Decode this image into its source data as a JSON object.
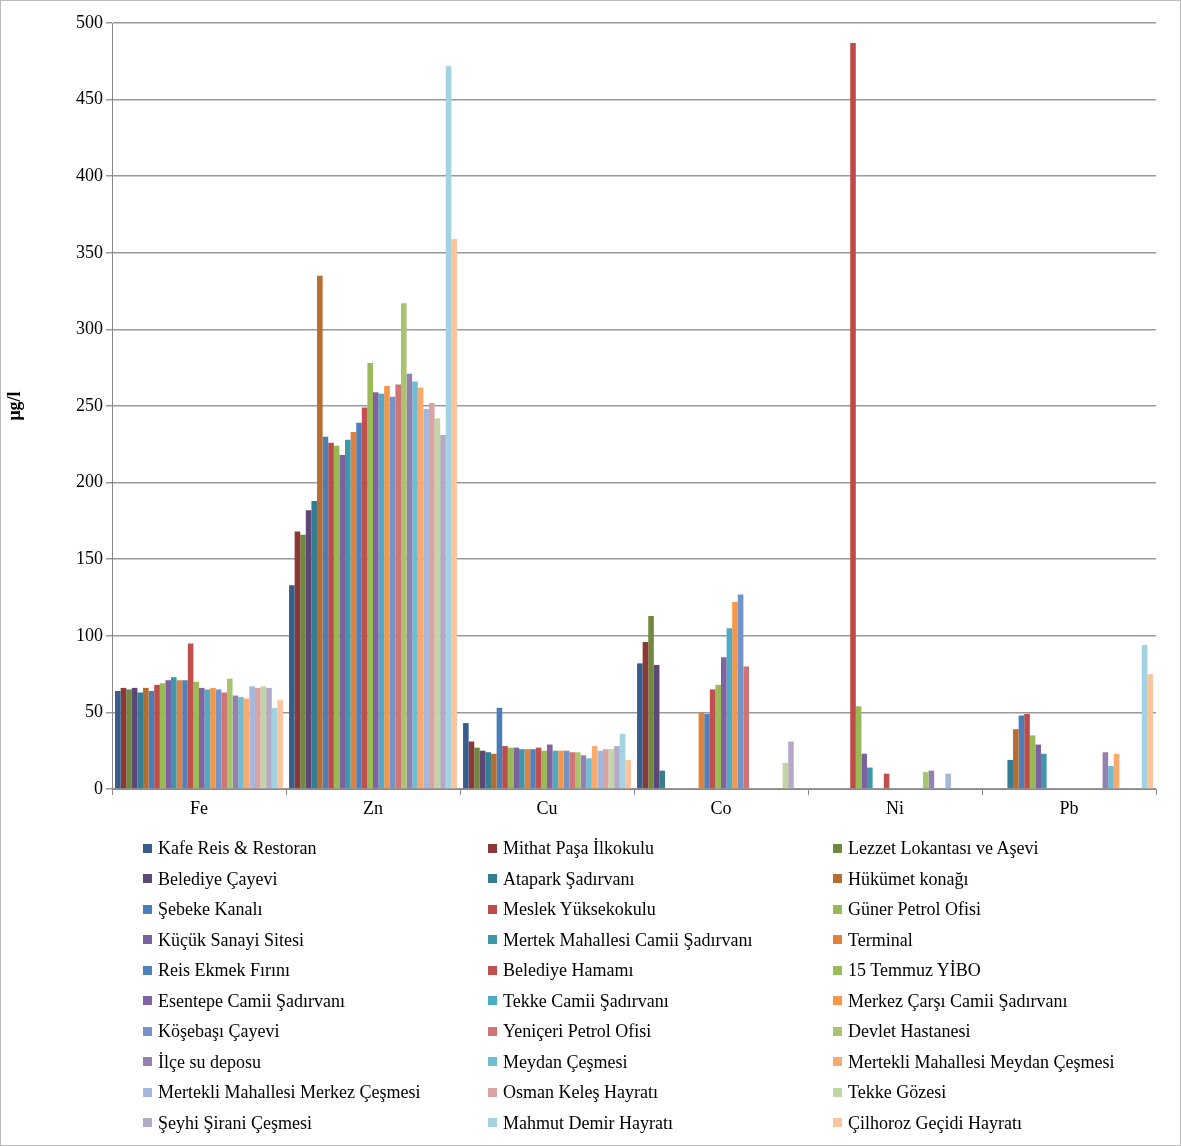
{
  "chart_data": {
    "type": "bar",
    "ylabel": "μg/l",
    "categories": [
      "Fe",
      "Zn",
      "Cu",
      "Co",
      "Ni",
      "Pb"
    ],
    "ylim": [
      0,
      500
    ],
    "yticks": [
      0,
      50,
      100,
      150,
      200,
      250,
      300,
      350,
      400,
      450,
      500
    ],
    "grid": "y",
    "legend": "bottom",
    "series": [
      {
        "name": "Kafe Reis & Restoran",
        "color": "#385d8a",
        "values": [
          64,
          133,
          43,
          82,
          null,
          null
        ]
      },
      {
        "name": "Mithat Paşa İlkokulu",
        "color": "#8c3836",
        "values": [
          66,
          168,
          31,
          96,
          null,
          null
        ]
      },
      {
        "name": "Lezzet Lokantası ve Aşevi",
        "color": "#71893f",
        "values": [
          65,
          166,
          27,
          113,
          null,
          null
        ]
      },
      {
        "name": "Belediye Çayevi",
        "color": "#5c4776",
        "values": [
          66,
          182,
          25,
          81,
          null,
          null
        ]
      },
      {
        "name": "Atapark Şadırvanı",
        "color": "#357d91",
        "values": [
          63,
          188,
          24,
          12,
          null,
          19
        ]
      },
      {
        "name": "Hükümet konağı",
        "color": "#b66d31",
        "values": [
          66,
          335,
          23,
          null,
          null,
          39
        ]
      },
      {
        "name": "Şebeke Kanalı",
        "color": "#4a7ebb",
        "values": [
          64,
          230,
          53,
          null,
          null,
          48
        ]
      },
      {
        "name": "Meslek Yüksekokulu",
        "color": "#be4b48",
        "values": [
          68,
          226,
          28,
          null,
          487,
          49
        ]
      },
      {
        "name": "Güner Petrol Ofisi",
        "color": "#98b954",
        "values": [
          69,
          224,
          27,
          null,
          54,
          35
        ]
      },
      {
        "name": "Küçük Sanayi Sitesi",
        "color": "#7d60a0",
        "values": [
          71,
          218,
          27,
          null,
          23,
          29
        ]
      },
      {
        "name": "Mertek Mahallesi Camii Şadırvanı",
        "color": "#3f97ae",
        "values": [
          73,
          228,
          26,
          null,
          14,
          23
        ]
      },
      {
        "name": "Terminal",
        "color": "#e2823a",
        "values": [
          71,
          233,
          26,
          50,
          null,
          null
        ]
      },
      {
        "name": "Reis Ekmek Fırını",
        "color": "#4f81bd",
        "values": [
          71,
          239,
          26,
          49,
          null,
          null
        ]
      },
      {
        "name": "Belediye Hamamı",
        "color": "#c0504d",
        "values": [
          95,
          249,
          27,
          65,
          10,
          null
        ]
      },
      {
        "name": "15 Temmuz YİBO",
        "color": "#9bbb59",
        "values": [
          70,
          278,
          25,
          68,
          null,
          null
        ]
      },
      {
        "name": "Esentepe Camii Şadırvanı",
        "color": "#8064a2",
        "values": [
          66,
          259,
          29,
          86,
          null,
          null
        ]
      },
      {
        "name": "Tekke Camii Şadırvanı",
        "color": "#4bacc6",
        "values": [
          65,
          258,
          25,
          105,
          null,
          null
        ]
      },
      {
        "name": "Merkez Çarşı Camii Şadırvanı",
        "color": "#f79646",
        "values": [
          66,
          263,
          25,
          122,
          null,
          null
        ]
      },
      {
        "name": "Köşebaşı Çayevi",
        "color": "#7393c9",
        "values": [
          65,
          256,
          25,
          127,
          null,
          null
        ]
      },
      {
        "name": "Yeniçeri Petrol Ofisi",
        "color": "#d07573",
        "values": [
          63,
          264,
          24,
          80,
          null,
          null
        ]
      },
      {
        "name": "Devlet Hastanesi",
        "color": "#a9c46f",
        "values": [
          72,
          317,
          24,
          null,
          11,
          null
        ]
      },
      {
        "name": "İlçe su deposu",
        "color": "#9580b2",
        "values": [
          61,
          271,
          22,
          null,
          12,
          24
        ]
      },
      {
        "name": "Meydan Çeşmesi",
        "color": "#6fbdd2",
        "values": [
          60,
          266,
          20,
          null,
          null,
          15
        ]
      },
      {
        "name": "Mertekli Mahallesi Meydan Çeşmesi",
        "color": "#f9aa6e",
        "values": [
          59,
          262,
          28,
          null,
          null,
          23
        ]
      },
      {
        "name": "Mertekli Mahallesi Merkez Çeşmesi",
        "color": "#a5b8dc",
        "values": [
          67,
          248,
          25,
          null,
          10,
          null
        ]
      },
      {
        "name": "Osman Keleş Hayratı",
        "color": "#d9a3a2",
        "values": [
          66,
          252,
          26,
          null,
          null,
          null
        ]
      },
      {
        "name": "Tekke Gözesi",
        "color": "#c3d5a4",
        "values": [
          67,
          242,
          26,
          17,
          null,
          null
        ]
      },
      {
        "name": "Şeyhi Şirani Çeşmesi",
        "color": "#b5a9c8",
        "values": [
          66,
          231,
          28,
          31,
          null,
          null
        ]
      },
      {
        "name": "Mahmut Demir Hayratı",
        "color": "#a3d3e0",
        "values": [
          53,
          472,
          36,
          null,
          null,
          94
        ]
      },
      {
        "name": "Çilhoroz Geçidi Hayratı",
        "color": "#fbc49c",
        "values": [
          58,
          359,
          19,
          null,
          null,
          75
        ]
      }
    ]
  }
}
